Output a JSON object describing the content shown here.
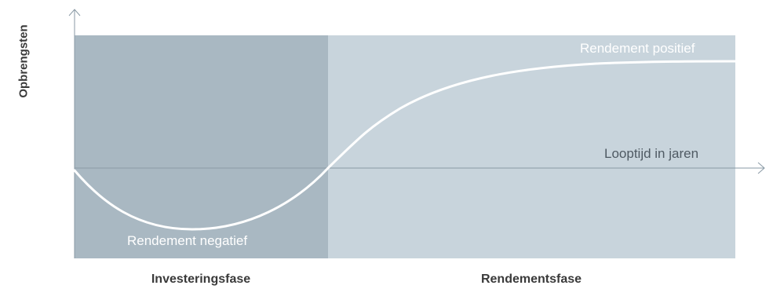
{
  "y_axis_label": "Opbrengsten",
  "x_axis_label": "Looptijd in jaren",
  "curve_labels": {
    "positive": "Rendement positief",
    "negative": "Rendement negatief"
  },
  "phases": {
    "investment": "Investeringsfase",
    "return": "Rendementsfase"
  },
  "colors": {
    "investment_phase_fill": "#a9b8c2",
    "return_phase_fill": "#c8d4dc",
    "axis": "#8a9aa5",
    "curve": "#ffffff"
  }
}
